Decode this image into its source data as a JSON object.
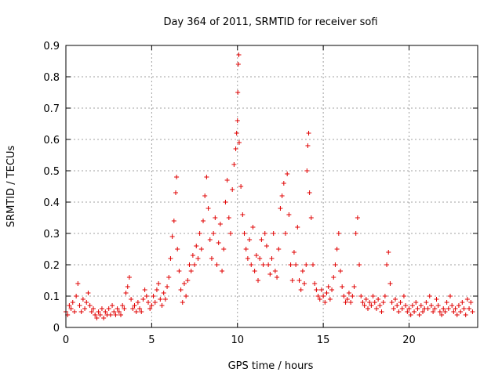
{
  "chart_data": {
    "type": "scatter",
    "title": "Day 364 of 2011, SRMTID for receiver sofi",
    "xlabel": "GPS time / hours",
    "ylabel": "SRMTID / TECUs",
    "xlim": [
      0,
      24
    ],
    "ylim": [
      0,
      0.9
    ],
    "xticks": [
      0,
      5,
      10,
      15,
      20
    ],
    "xtick_labels": [
      "0",
      "5",
      "10",
      "15",
      "20"
    ],
    "yticks": [
      0,
      0.1,
      0.2,
      0.3,
      0.4,
      0.5,
      0.6,
      0.7,
      0.8,
      0.9
    ],
    "ytick_labels": [
      "0",
      "0.1",
      "0.2",
      "0.3",
      "0.4",
      "0.5",
      "0.6",
      "0.7",
      "0.8",
      "0.9"
    ],
    "grid": true,
    "marker": "+",
    "color": "#e00000",
    "series": [
      {
        "name": "sofi",
        "points": [
          [
            0.0,
            0.05
          ],
          [
            0.1,
            0.04
          ],
          [
            0.2,
            0.07
          ],
          [
            0.3,
            0.06
          ],
          [
            0.4,
            0.08
          ],
          [
            0.5,
            0.05
          ],
          [
            0.6,
            0.1
          ],
          [
            0.7,
            0.14
          ],
          [
            0.8,
            0.07
          ],
          [
            0.9,
            0.05
          ],
          [
            1.0,
            0.09
          ],
          [
            1.1,
            0.06
          ],
          [
            1.2,
            0.08
          ],
          [
            1.3,
            0.11
          ],
          [
            1.4,
            0.07
          ],
          [
            1.5,
            0.05
          ],
          [
            1.6,
            0.06
          ],
          [
            1.7,
            0.04
          ],
          [
            1.8,
            0.03
          ],
          [
            1.9,
            0.05
          ],
          [
            2.0,
            0.04
          ],
          [
            2.1,
            0.06
          ],
          [
            2.2,
            0.03
          ],
          [
            2.3,
            0.05
          ],
          [
            2.4,
            0.04
          ],
          [
            2.5,
            0.06
          ],
          [
            2.6,
            0.04
          ],
          [
            2.7,
            0.07
          ],
          [
            2.8,
            0.05
          ],
          [
            2.9,
            0.04
          ],
          [
            3.0,
            0.06
          ],
          [
            3.1,
            0.05
          ],
          [
            3.2,
            0.04
          ],
          [
            3.3,
            0.07
          ],
          [
            3.4,
            0.06
          ],
          [
            3.5,
            0.11
          ],
          [
            3.6,
            0.13
          ],
          [
            3.7,
            0.16
          ],
          [
            3.8,
            0.09
          ],
          [
            3.9,
            0.06
          ],
          [
            4.0,
            0.07
          ],
          [
            4.1,
            0.05
          ],
          [
            4.2,
            0.08
          ],
          [
            4.3,
            0.06
          ],
          [
            4.4,
            0.05
          ],
          [
            4.5,
            0.09
          ],
          [
            4.6,
            0.12
          ],
          [
            4.7,
            0.1
          ],
          [
            4.8,
            0.08
          ],
          [
            4.9,
            0.06
          ],
          [
            5.0,
            0.07
          ],
          [
            5.1,
            0.1
          ],
          [
            5.2,
            0.08
          ],
          [
            5.3,
            0.12
          ],
          [
            5.4,
            0.14
          ],
          [
            5.5,
            0.09
          ],
          [
            5.6,
            0.07
          ],
          [
            5.7,
            0.11
          ],
          [
            5.8,
            0.09
          ],
          [
            5.9,
            0.13
          ],
          [
            6.0,
            0.16
          ],
          [
            6.1,
            0.22
          ],
          [
            6.2,
            0.29
          ],
          [
            6.3,
            0.34
          ],
          [
            6.4,
            0.43
          ],
          [
            6.45,
            0.48
          ],
          [
            6.5,
            0.25
          ],
          [
            6.6,
            0.18
          ],
          [
            6.7,
            0.12
          ],
          [
            6.8,
            0.08
          ],
          [
            6.9,
            0.14
          ],
          [
            7.0,
            0.1
          ],
          [
            7.1,
            0.15
          ],
          [
            7.2,
            0.2
          ],
          [
            7.3,
            0.18
          ],
          [
            7.4,
            0.23
          ],
          [
            7.5,
            0.2
          ],
          [
            7.6,
            0.26
          ],
          [
            7.7,
            0.22
          ],
          [
            7.8,
            0.3
          ],
          [
            7.9,
            0.25
          ],
          [
            8.0,
            0.34
          ],
          [
            8.1,
            0.42
          ],
          [
            8.2,
            0.48
          ],
          [
            8.3,
            0.38
          ],
          [
            8.4,
            0.28
          ],
          [
            8.5,
            0.22
          ],
          [
            8.6,
            0.3
          ],
          [
            8.7,
            0.35
          ],
          [
            8.8,
            0.2
          ],
          [
            8.9,
            0.27
          ],
          [
            9.0,
            0.33
          ],
          [
            9.1,
            0.18
          ],
          [
            9.2,
            0.25
          ],
          [
            9.3,
            0.4
          ],
          [
            9.4,
            0.47
          ],
          [
            9.5,
            0.35
          ],
          [
            9.6,
            0.3
          ],
          [
            9.7,
            0.44
          ],
          [
            9.8,
            0.52
          ],
          [
            9.9,
            0.57
          ],
          [
            9.95,
            0.62
          ],
          [
            10.0,
            0.66
          ],
          [
            10.02,
            0.75
          ],
          [
            10.05,
            0.84
          ],
          [
            10.08,
            0.87
          ],
          [
            10.1,
            0.59
          ],
          [
            10.2,
            0.45
          ],
          [
            10.3,
            0.36
          ],
          [
            10.4,
            0.3
          ],
          [
            10.5,
            0.25
          ],
          [
            10.6,
            0.22
          ],
          [
            10.7,
            0.28
          ],
          [
            10.8,
            0.2
          ],
          [
            10.9,
            0.32
          ],
          [
            11.0,
            0.18
          ],
          [
            11.1,
            0.23
          ],
          [
            11.2,
            0.15
          ],
          [
            11.3,
            0.22
          ],
          [
            11.4,
            0.28
          ],
          [
            11.5,
            0.2
          ],
          [
            11.6,
            0.3
          ],
          [
            11.7,
            0.26
          ],
          [
            11.8,
            0.2
          ],
          [
            11.9,
            0.17
          ],
          [
            12.0,
            0.22
          ],
          [
            12.1,
            0.3
          ],
          [
            12.2,
            0.18
          ],
          [
            12.3,
            0.16
          ],
          [
            12.4,
            0.25
          ],
          [
            12.5,
            0.38
          ],
          [
            12.6,
            0.42
          ],
          [
            12.7,
            0.46
          ],
          [
            12.8,
            0.3
          ],
          [
            12.9,
            0.49
          ],
          [
            13.0,
            0.36
          ],
          [
            13.1,
            0.2
          ],
          [
            13.2,
            0.15
          ],
          [
            13.3,
            0.24
          ],
          [
            13.4,
            0.2
          ],
          [
            13.5,
            0.32
          ],
          [
            13.6,
            0.15
          ],
          [
            13.7,
            0.12
          ],
          [
            13.8,
            0.18
          ],
          [
            13.9,
            0.14
          ],
          [
            14.0,
            0.2
          ],
          [
            14.05,
            0.5
          ],
          [
            14.1,
            0.58
          ],
          [
            14.15,
            0.62
          ],
          [
            14.2,
            0.43
          ],
          [
            14.3,
            0.35
          ],
          [
            14.4,
            0.2
          ],
          [
            14.5,
            0.14
          ],
          [
            14.6,
            0.12
          ],
          [
            14.7,
            0.1
          ],
          [
            14.8,
            0.09
          ],
          [
            14.9,
            0.12
          ],
          [
            15.0,
            0.1
          ],
          [
            15.1,
            0.08
          ],
          [
            15.2,
            0.11
          ],
          [
            15.3,
            0.13
          ],
          [
            15.4,
            0.09
          ],
          [
            15.5,
            0.12
          ],
          [
            15.6,
            0.16
          ],
          [
            15.7,
            0.2
          ],
          [
            15.8,
            0.25
          ],
          [
            15.9,
            0.3
          ],
          [
            16.0,
            0.18
          ],
          [
            16.1,
            0.13
          ],
          [
            16.2,
            0.1
          ],
          [
            16.3,
            0.08
          ],
          [
            16.4,
            0.09
          ],
          [
            16.5,
            0.11
          ],
          [
            16.6,
            0.08
          ],
          [
            16.7,
            0.1
          ],
          [
            16.8,
            0.13
          ],
          [
            16.9,
            0.3
          ],
          [
            17.0,
            0.35
          ],
          [
            17.1,
            0.2
          ],
          [
            17.2,
            0.1
          ],
          [
            17.3,
            0.08
          ],
          [
            17.4,
            0.07
          ],
          [
            17.5,
            0.09
          ],
          [
            17.6,
            0.06
          ],
          [
            17.7,
            0.08
          ],
          [
            17.8,
            0.07
          ],
          [
            17.9,
            0.1
          ],
          [
            18.0,
            0.08
          ],
          [
            18.1,
            0.06
          ],
          [
            18.2,
            0.09
          ],
          [
            18.3,
            0.07
          ],
          [
            18.4,
            0.05
          ],
          [
            18.5,
            0.08
          ],
          [
            18.6,
            0.1
          ],
          [
            18.7,
            0.2
          ],
          [
            18.8,
            0.24
          ],
          [
            18.9,
            0.14
          ],
          [
            19.0,
            0.08
          ],
          [
            19.1,
            0.06
          ],
          [
            19.2,
            0.09
          ],
          [
            19.3,
            0.07
          ],
          [
            19.4,
            0.05
          ],
          [
            19.5,
            0.08
          ],
          [
            19.6,
            0.06
          ],
          [
            19.7,
            0.1
          ],
          [
            19.8,
            0.07
          ],
          [
            19.9,
            0.05
          ],
          [
            20.0,
            0.06
          ],
          [
            20.1,
            0.04
          ],
          [
            20.2,
            0.07
          ],
          [
            20.3,
            0.05
          ],
          [
            20.4,
            0.08
          ],
          [
            20.5,
            0.06
          ],
          [
            20.6,
            0.04
          ],
          [
            20.7,
            0.07
          ],
          [
            20.8,
            0.05
          ],
          [
            20.9,
            0.06
          ],
          [
            21.0,
            0.08
          ],
          [
            21.1,
            0.06
          ],
          [
            21.2,
            0.1
          ],
          [
            21.3,
            0.07
          ],
          [
            21.4,
            0.05
          ],
          [
            21.5,
            0.06
          ],
          [
            21.6,
            0.09
          ],
          [
            21.7,
            0.07
          ],
          [
            21.8,
            0.05
          ],
          [
            21.9,
            0.04
          ],
          [
            22.0,
            0.06
          ],
          [
            22.1,
            0.05
          ],
          [
            22.2,
            0.08
          ],
          [
            22.3,
            0.06
          ],
          [
            22.4,
            0.1
          ],
          [
            22.5,
            0.07
          ],
          [
            22.6,
            0.05
          ],
          [
            22.7,
            0.06
          ],
          [
            22.8,
            0.04
          ],
          [
            22.9,
            0.07
          ],
          [
            23.0,
            0.05
          ],
          [
            23.1,
            0.08
          ],
          [
            23.2,
            0.06
          ],
          [
            23.3,
            0.04
          ],
          [
            23.4,
            0.09
          ],
          [
            23.5,
            0.06
          ],
          [
            23.6,
            0.08
          ],
          [
            23.7,
            0.05
          ]
        ]
      }
    ]
  }
}
